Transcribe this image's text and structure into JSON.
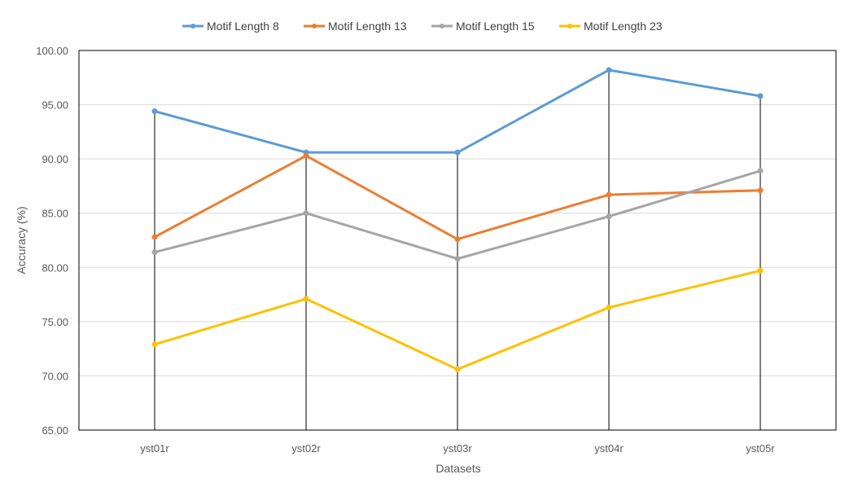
{
  "chart_data": {
    "type": "line",
    "categories": [
      "yst01r",
      "yst02r",
      "yst03r",
      "yst04r",
      "yst05r"
    ],
    "series": [
      {
        "name": "Motif Length 8",
        "color": "#5B9BD5",
        "values": [
          94.4,
          90.6,
          90.6,
          98.2,
          95.8
        ]
      },
      {
        "name": "Motif Length 13",
        "color": "#ED7D31",
        "values": [
          82.8,
          90.3,
          82.6,
          86.7,
          87.1
        ]
      },
      {
        "name": "Motif Length 15",
        "color": "#A5A5A5",
        "values": [
          81.4,
          85.0,
          80.8,
          84.7,
          88.9
        ]
      },
      {
        "name": "Motif Length 23",
        "color": "#FFC000",
        "values": [
          72.9,
          77.1,
          70.6,
          76.3,
          79.7
        ]
      }
    ],
    "xlabel": "Datasets",
    "ylabel": "Accuracy (%)",
    "ylim": [
      65,
      100
    ],
    "yticks": [
      "65.00",
      "70.00",
      "75.00",
      "80.00",
      "85.00",
      "90.00",
      "95.00",
      "100.00"
    ],
    "grid": true,
    "legend_position": "top-center",
    "drop_lines": true
  }
}
